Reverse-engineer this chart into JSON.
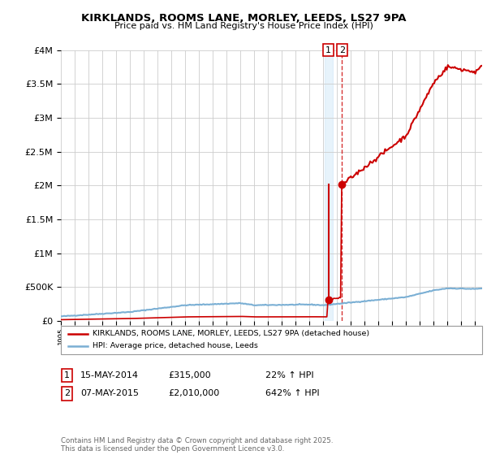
{
  "title": "KIRKLANDS, ROOMS LANE, MORLEY, LEEDS, LS27 9PA",
  "subtitle": "Price paid vs. HM Land Registry's House Price Index (HPI)",
  "legend_line1": "KIRKLANDS, ROOMS LANE, MORLEY, LEEDS, LS27 9PA (detached house)",
  "legend_line2": "HPI: Average price, detached house, Leeds",
  "annotation1_label": "1",
  "annotation1_date": "15-MAY-2014",
  "annotation1_price": "£315,000",
  "annotation1_hpi": "22% ↑ HPI",
  "annotation2_label": "2",
  "annotation2_date": "07-MAY-2015",
  "annotation2_price": "£2,010,000",
  "annotation2_hpi": "642% ↑ HPI",
  "footer": "Contains HM Land Registry data © Crown copyright and database right 2025.\nThis data is licensed under the Open Government Licence v3.0.",
  "sale1_year": 2014.37,
  "sale1_price": 315000,
  "sale2_year": 2015.35,
  "sale2_price": 2010000,
  "hpi_color": "#7aafd4",
  "property_color": "#cc0000",
  "background_color": "#ffffff",
  "grid_color": "#cccccc",
  "ylim": [
    0,
    4000000
  ],
  "xlim": [
    1995,
    2025.5
  ]
}
